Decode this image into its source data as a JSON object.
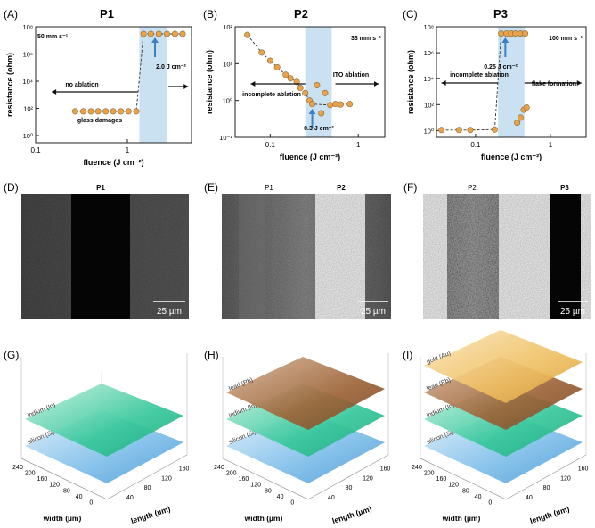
{
  "panels": {
    "A": {
      "letter": "(A)",
      "title": "P1",
      "speed": "50 mm s⁻¹",
      "annot1": "no ablation",
      "annot2": "glass damages",
      "annot3": "2.0 J cm⁻²"
    },
    "B": {
      "letter": "(B)",
      "title": "P2",
      "speed": "33 mm s⁻¹",
      "annot1": "incomplete ablation",
      "annot2": "ITO ablation",
      "annot3": "0.3 J cm⁻²"
    },
    "C": {
      "letter": "(C)",
      "title": "P3",
      "speed": "100 mm s⁻¹",
      "annot1": "incomplete ablation",
      "annot2": "flake formation",
      "annot3": "0.25 J cm⁻²"
    },
    "D": {
      "letter": "(D)",
      "label1": "P1",
      "scale": "25 µm"
    },
    "E": {
      "letter": "(E)",
      "label1": "P1",
      "label2": "P2",
      "scale": "25 µm"
    },
    "F": {
      "letter": "(F)",
      "label1": "P2",
      "label2": "P3",
      "scale": "25 µm"
    },
    "G": {
      "letter": "(G)",
      "layers": [
        "indium (In)",
        "silicon (Si)"
      ]
    },
    "H": {
      "letter": "(H)",
      "layers": [
        "lead (Pb)",
        "indium (In)",
        "silicon (Si)"
      ]
    },
    "I": {
      "letter": "(I)",
      "layers": [
        "gold (Au)",
        "lead (Pb)",
        "indium (In)",
        "silicon (Si)"
      ]
    }
  },
  "axes": {
    "xlabel": "fluence (J cm⁻²)",
    "ylabel": "resistance (ohm)",
    "width_label": "width (µm)",
    "length_label": "length (µm)",
    "width_ticks": [
      "240",
      "200",
      "160",
      "120",
      "80",
      "40",
      "0"
    ],
    "length_ticks": [
      "40",
      "80",
      "120",
      "160"
    ]
  },
  "chart_data": [
    {
      "type": "scatter",
      "title": "P1",
      "xlabel": "fluence (J cm⁻²)",
      "ylabel": "resistance (ohm)",
      "xscale": "log",
      "yscale": "log",
      "xlim": [
        0.1,
        5
      ],
      "ylim": [
        0.3,
        100000000
      ],
      "xticks": [
        {
          "v": 0.1,
          "label": "0.1"
        },
        {
          "v": 1,
          "label": "1"
        }
      ],
      "yticks": [
        {
          "v": 1,
          "label": "10⁰"
        },
        {
          "v": 100,
          "label": "10²"
        },
        {
          "v": 10000,
          "label": "10⁴"
        },
        {
          "v": 1000000,
          "label": "10⁶"
        },
        {
          "v": 100000000,
          "label": "10⁸"
        }
      ],
      "threshold": 2.0,
      "highlight": [
        1.35,
        2.7
      ],
      "x": [
        0.27,
        0.33,
        0.4,
        0.48,
        0.58,
        0.7,
        0.85,
        1.03,
        1.25,
        1.5,
        1.8,
        2.2,
        2.7,
        3.3,
        4.0
      ],
      "y": [
        60,
        60,
        60,
        60,
        60,
        60,
        60,
        60,
        60,
        30000000,
        30000000,
        30000000,
        30000000,
        30000000,
        30000000
      ]
    },
    {
      "type": "scatter",
      "title": "P2",
      "xlabel": "fluence (J cm⁻²)",
      "ylabel": "resistance (ohm)",
      "xscale": "log",
      "yscale": "log",
      "xlim": [
        0.04,
        2
      ],
      "ylim": [
        0.1,
        100
      ],
      "xticks": [
        {
          "v": 0.1,
          "label": "0.1"
        },
        {
          "v": 1,
          "label": "1"
        }
      ],
      "yticks": [
        {
          "v": 0.1,
          "label": "10⁻¹"
        },
        {
          "v": 1,
          "label": "10⁰"
        },
        {
          "v": 10,
          "label": "10¹"
        },
        {
          "v": 100,
          "label": "10²"
        }
      ],
      "threshold": 0.3,
      "highlight": [
        0.25,
        0.5
      ],
      "x": [
        0.055,
        0.08,
        0.1,
        0.12,
        0.15,
        0.17,
        0.2,
        0.22,
        0.25,
        0.28,
        0.3,
        0.34,
        0.38,
        0.42,
        0.48,
        0.55,
        0.63,
        0.8
      ],
      "y": [
        60,
        20,
        12,
        8,
        5,
        4,
        3.2,
        2.2,
        1.6,
        1.0,
        0.8,
        2.6,
        0.45,
        1.6,
        0.75,
        0.8,
        0.78,
        0.8
      ]
    },
    {
      "type": "scatter",
      "title": "P3",
      "xlabel": "fluence (J cm⁻²)",
      "ylabel": "resistance (ohm)",
      "xscale": "log",
      "yscale": "log",
      "xlim": [
        0.03,
        3
      ],
      "ylim": [
        0.3,
        100000000
      ],
      "xticks": [
        {
          "v": 0.1,
          "label": "0.1"
        },
        {
          "v": 1,
          "label": "1"
        }
      ],
      "yticks": [
        {
          "v": 1,
          "label": "10⁰"
        },
        {
          "v": 100,
          "label": "10²"
        },
        {
          "v": 10000,
          "label": "10⁴"
        },
        {
          "v": 1000000,
          "label": "10⁶"
        },
        {
          "v": 100000000,
          "label": "10⁸"
        }
      ],
      "threshold": 0.25,
      "highlight": [
        0.2,
        0.45
      ],
      "x": [
        0.035,
        0.06,
        0.085,
        0.18,
        0.22,
        0.26,
        0.3,
        0.34,
        0.4,
        0.46,
        0.36,
        0.4,
        0.44,
        0.48
      ],
      "y": [
        1.1,
        1.1,
        1.1,
        1.2,
        30000000,
        30000000,
        30000000,
        30000000,
        30000000,
        30000000,
        4,
        10,
        40,
        60
      ]
    }
  ],
  "colors": {
    "marker": "#e9a24c",
    "marker_dark": "#8a6d3c",
    "highlight": "#bcd9ee",
    "arrow": "#3c7fc2",
    "indium": "#35c79a",
    "silicon": "#6fb5e6",
    "lead": "#a56a3d",
    "gold": "#e8b65a"
  }
}
